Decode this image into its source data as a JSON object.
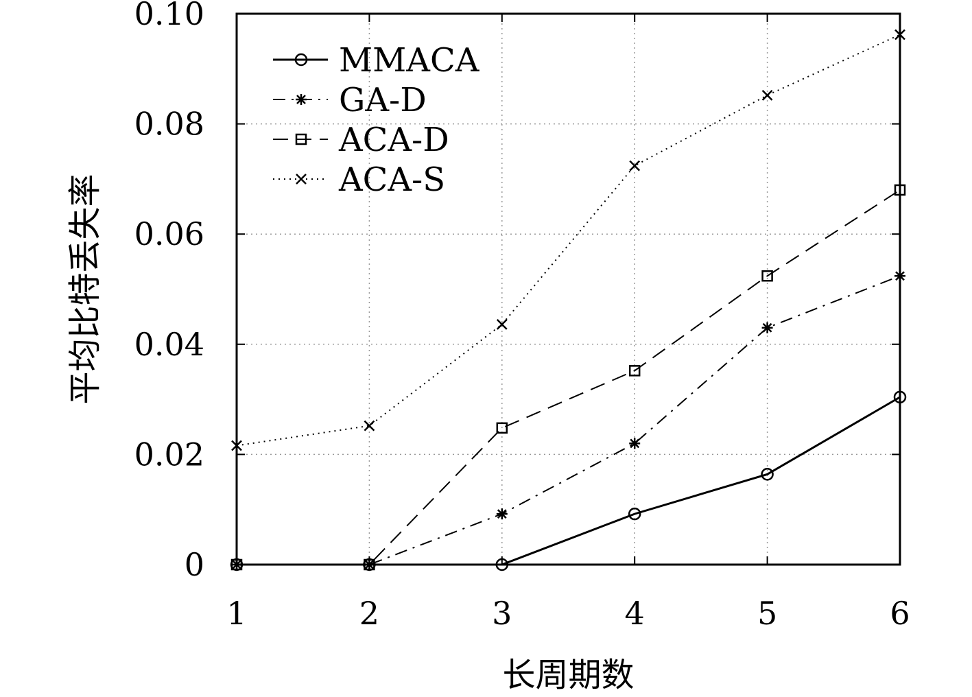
{
  "chart_data": {
    "type": "line",
    "title": "",
    "xlabel": "长周期数",
    "ylabel": "平均比特丢失率",
    "x": [
      1,
      2,
      3,
      4,
      5,
      6
    ],
    "xlim": [
      1,
      6
    ],
    "ylim": [
      0,
      0.1
    ],
    "x_ticks": [
      "1",
      "2",
      "3",
      "4",
      "5",
      "6"
    ],
    "y_ticks": [
      "0",
      "0.02",
      "0.04",
      "0.06",
      "0.08",
      "0.10"
    ],
    "y_tick_values": [
      0,
      0.02,
      0.04,
      0.06,
      0.08,
      0.1
    ],
    "grid": true,
    "legend_position": "top-left",
    "series": [
      {
        "name": "MMACA",
        "values": [
          0,
          0,
          0,
          0.0092,
          0.0164,
          0.0304
        ],
        "marker": "circle",
        "line_style": "solid"
      },
      {
        "name": "GA-D",
        "values": [
          0,
          0,
          0.0092,
          0.022,
          0.043,
          0.0524
        ],
        "marker": "asterisk",
        "line_style": "dashdot"
      },
      {
        "name": "ACA-D",
        "values": [
          0,
          0,
          0.0248,
          0.0352,
          0.0524,
          0.068
        ],
        "marker": "square",
        "line_style": "dashed"
      },
      {
        "name": "ACA-S",
        "values": [
          0.0216,
          0.0252,
          0.0436,
          0.0724,
          0.0852,
          0.0962
        ],
        "marker": "cross",
        "line_style": "dotted"
      }
    ]
  }
}
